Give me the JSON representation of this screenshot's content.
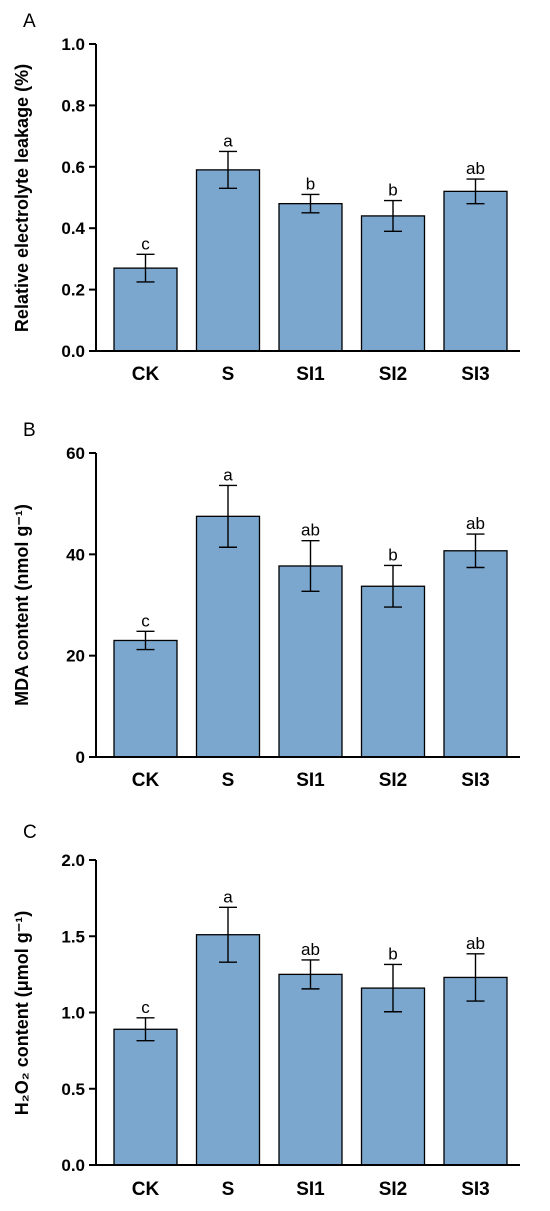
{
  "colors": {
    "bar": "#7ba7cf",
    "axis": "#000000"
  },
  "chart_data": [
    {
      "type": "bar",
      "panel": "A",
      "ylabel": "Relative electrolyte leakage (%)",
      "categories": [
        "CK",
        "S",
        "SI1",
        "SI2",
        "SI3"
      ],
      "values": [
        0.27,
        0.59,
        0.48,
        0.44,
        0.52
      ],
      "errors": [
        0.045,
        0.06,
        0.03,
        0.05,
        0.04
      ],
      "significance": [
        "c",
        "a",
        "b",
        "b",
        "ab"
      ],
      "ylim": [
        0,
        1.0
      ],
      "yticks": [
        0.0,
        0.2,
        0.4,
        0.6,
        0.8,
        1.0
      ],
      "ytick_labels": [
        "0.0",
        "0.2",
        "0.4",
        "0.6",
        "0.8",
        "1.0"
      ],
      "grid": false
    },
    {
      "type": "bar",
      "panel": "B",
      "ylabel": "MDA content (nmol g⁻¹)",
      "categories": [
        "CK",
        "S",
        "SI1",
        "SI2",
        "SI3"
      ],
      "values": [
        23,
        47.5,
        37.7,
        33.7,
        40.7
      ],
      "errors": [
        1.8,
        6.1,
        5.0,
        4.1,
        3.3
      ],
      "significance": [
        "c",
        "a",
        "ab",
        "b",
        "ab"
      ],
      "ylim": [
        0,
        60
      ],
      "yticks": [
        0,
        20,
        40,
        60
      ],
      "ytick_labels": [
        "0",
        "20",
        "40",
        "60"
      ],
      "grid": false
    },
    {
      "type": "bar",
      "panel": "C",
      "ylabel": "H₂O₂ content (μmol g⁻¹)",
      "categories": [
        "CK",
        "S",
        "SI1",
        "SI2",
        "SI3"
      ],
      "values": [
        0.89,
        1.51,
        1.25,
        1.16,
        1.23
      ],
      "errors": [
        0.075,
        0.18,
        0.095,
        0.155,
        0.155
      ],
      "significance": [
        "c",
        "a",
        "ab",
        "b",
        "ab"
      ],
      "ylim": [
        0,
        2.0
      ],
      "yticks": [
        0.0,
        0.5,
        1.0,
        1.5,
        2.0
      ],
      "ytick_labels": [
        "0.0",
        "0.5",
        "1.0",
        "1.5",
        "2.0"
      ],
      "grid": false
    }
  ]
}
